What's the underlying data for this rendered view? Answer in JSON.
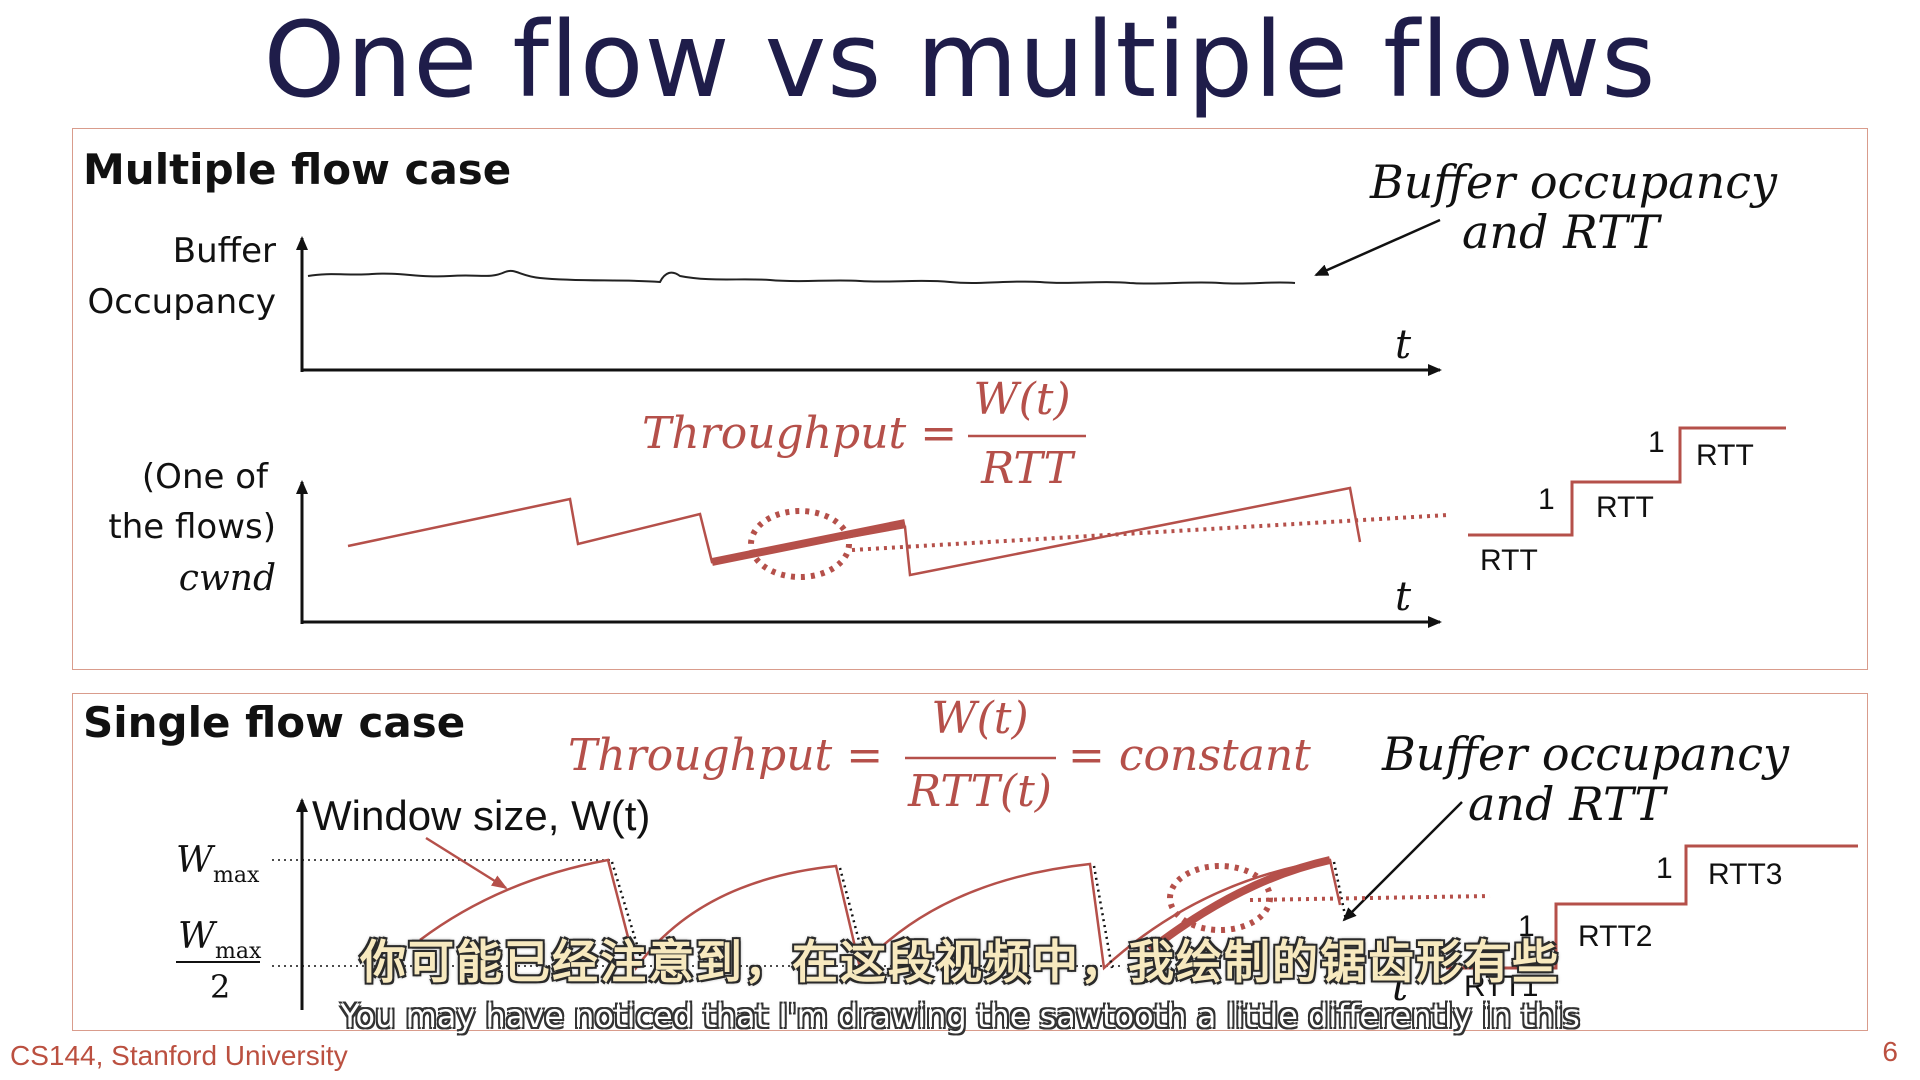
{
  "title": "One flow vs multiple flows",
  "multiple_flow": {
    "heading": "Multiple flow case",
    "buffer_label_line1": "Buffer",
    "buffer_label_line2": "Occupancy",
    "annotation_line1": "Buffer occupancy",
    "annotation_line2": "and RTT",
    "axis_t_top": "t",
    "axis_t_bottom": "t",
    "throughput_lhs": "Throughput =",
    "throughput_num": "W(t)",
    "throughput_den": "RTT",
    "cwnd_label_line1": "(One of",
    "cwnd_label_line2": "the flows)",
    "cwnd_label_line3": "cwnd",
    "stair_labels": [
      "RTT",
      "RTT",
      "RTT"
    ],
    "stair_steps": [
      "1",
      "1"
    ]
  },
  "single_flow": {
    "heading": "Single flow case",
    "throughput_lhs": "Throughput =",
    "throughput_num": "W(t)",
    "throughput_den": "RTT(t)",
    "throughput_rhs": "= constant",
    "annotation_line1": "Buffer occupancy",
    "annotation_line2": "and RTT",
    "window_label": "Window size, W(t)",
    "wmax": "W",
    "wmax_sub": "max",
    "wmax_half_top": "W",
    "wmax_half_sub": "max",
    "wmax_half_den": "2",
    "axis_t": "t",
    "stair_labels": [
      "RTT1",
      "RTT2",
      "RTT3"
    ],
    "stair_steps": [
      "1",
      "1"
    ]
  },
  "subtitles": {
    "chinese": "你可能已经注意到，在这段视频中，我绘制的锯齿形有些",
    "english": "You may have noticed that I'm drawing the sawtooth a little differently in this"
  },
  "footer": {
    "course": "CS144, Stanford University",
    "page": "6"
  },
  "colors": {
    "accent_red": "#b5504a",
    "title_navy": "#1f1d4a",
    "panel_border": "#d99c8c"
  }
}
